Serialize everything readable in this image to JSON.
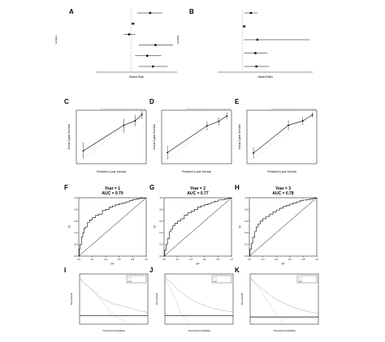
{
  "panel_labels": [
    "A",
    "B",
    "C",
    "D",
    "E",
    "F",
    "G",
    "H",
    "I",
    "J",
    "K"
  ],
  "chart_data": [
    {
      "panel": "A",
      "type": "forest",
      "xlabel": "Hazard Ratio",
      "ylabel": "Variable",
      "reference_value": 1,
      "rows": [
        {
          "hr": 1.55,
          "lo": 1.15,
          "hi": 2.05
        },
        {
          "hr": 1.05,
          "lo": 1.0,
          "hi": 1.1
        },
        {
          "hr": 0.96,
          "lo": 0.85,
          "hi": 1.1
        },
        {
          "hr": 1.75,
          "lo": 1.2,
          "hi": 2.6
        },
        {
          "hr": 1.45,
          "lo": 1.1,
          "hi": 2.0
        },
        {
          "hr": 1.65,
          "lo": 1.2,
          "hi": 2.3
        }
      ]
    },
    {
      "panel": "B",
      "type": "forest",
      "xlabel": "Hazard Ratio",
      "ylabel": "Variable",
      "reference_value": 1,
      "rows": [
        {
          "hr": 1.3,
          "lo": 1.05,
          "hi": 1.6
        },
        {
          "hr": 1.05,
          "lo": 1.0,
          "hi": 1.1
        },
        {
          "hr": 1.6,
          "lo": 1.05,
          "hi": 8.5
        },
        {
          "hr": 1.5,
          "lo": 1.05,
          "hi": 2.2
        },
        {
          "hr": 1.55,
          "lo": 1.05,
          "hi": 2.3
        }
      ]
    },
    {
      "panel": "C",
      "type": "line",
      "xlabel": "Predicted 1-year Survival",
      "ylabel": "Actual 1-year Survival",
      "xlim": [
        0.95,
        1.0
      ],
      "ylim": [
        0.95,
        1.0
      ],
      "points": [
        {
          "x": 0.955,
          "y": 0.962,
          "lo": 0.955,
          "hi": 0.97
        },
        {
          "x": 0.984,
          "y": 0.986,
          "lo": 0.979,
          "hi": 0.992
        },
        {
          "x": 0.992,
          "y": 0.99,
          "lo": 0.985,
          "hi": 0.996
        },
        {
          "x": 0.997,
          "y": 0.996,
          "lo": 0.992,
          "hi": 0.999
        }
      ]
    },
    {
      "panel": "D",
      "type": "line",
      "xlabel": "Predicted 2-year Survival",
      "ylabel": "Actual 2-year Survival",
      "xlim": [
        0.88,
        1.0
      ],
      "ylim": [
        0.88,
        1.0
      ],
      "points": [
        {
          "x": 0.89,
          "y": 0.905,
          "lo": 0.89,
          "hi": 0.92
        },
        {
          "x": 0.958,
          "y": 0.965,
          "lo": 0.955,
          "hi": 0.975
        },
        {
          "x": 0.978,
          "y": 0.975,
          "lo": 0.966,
          "hi": 0.984
        },
        {
          "x": 0.992,
          "y": 0.987,
          "lo": 0.98,
          "hi": 0.994
        }
      ]
    },
    {
      "panel": "E",
      "type": "line",
      "xlabel": "Predicted 3-year Survival",
      "ylabel": "Actual 3-year Survival",
      "xlim": [
        0.84,
        1.0
      ],
      "ylim": [
        0.84,
        1.0
      ],
      "points": [
        {
          "x": 0.855,
          "y": 0.872,
          "lo": 0.855,
          "hi": 0.89
        },
        {
          "x": 0.935,
          "y": 0.955,
          "lo": 0.94,
          "hi": 0.97
        },
        {
          "x": 0.968,
          "y": 0.968,
          "lo": 0.955,
          "hi": 0.98
        },
        {
          "x": 0.99,
          "y": 0.986,
          "lo": 0.978,
          "hi": 0.993
        }
      ]
    },
    {
      "panel": "F",
      "type": "line",
      "title": "Year = 1",
      "subtitle": "AUC = 0.79",
      "xlabel": "FP",
      "ylabel": "TP",
      "xlim": [
        0,
        1
      ],
      "ylim": [
        0,
        1
      ],
      "ticks": [
        0.0,
        0.2,
        0.4,
        0.6,
        0.8,
        1.0
      ],
      "x": [
        0,
        0.01,
        0.02,
        0.04,
        0.06,
        0.08,
        0.1,
        0.13,
        0.16,
        0.2,
        0.25,
        0.3,
        0.35,
        0.4,
        0.45,
        0.5,
        0.55,
        0.6,
        0.65,
        0.7,
        0.75,
        0.8,
        0.85,
        0.9,
        0.95,
        1
      ],
      "y": [
        0,
        0.12,
        0.2,
        0.33,
        0.4,
        0.48,
        0.5,
        0.58,
        0.62,
        0.66,
        0.7,
        0.72,
        0.78,
        0.8,
        0.84,
        0.86,
        0.88,
        0.9,
        0.91,
        0.93,
        0.95,
        0.97,
        0.98,
        0.99,
        0.995,
        1
      ]
    },
    {
      "panel": "G",
      "type": "line",
      "title": "Year = 2",
      "subtitle": "AUC = 0.77",
      "xlabel": "FP",
      "ylabel": "TP",
      "xlim": [
        0,
        1
      ],
      "ylim": [
        0,
        1
      ],
      "ticks": [
        0.0,
        0.2,
        0.4,
        0.6,
        0.8,
        1.0
      ],
      "x": [
        0,
        0.01,
        0.03,
        0.05,
        0.08,
        0.1,
        0.13,
        0.16,
        0.2,
        0.25,
        0.3,
        0.35,
        0.4,
        0.45,
        0.5,
        0.55,
        0.6,
        0.65,
        0.7,
        0.75,
        0.8,
        0.85,
        0.9,
        0.95,
        1
      ],
      "y": [
        0,
        0.1,
        0.2,
        0.3,
        0.42,
        0.46,
        0.52,
        0.56,
        0.6,
        0.64,
        0.7,
        0.74,
        0.77,
        0.8,
        0.84,
        0.86,
        0.88,
        0.9,
        0.92,
        0.94,
        0.96,
        0.97,
        0.98,
        0.99,
        1
      ]
    },
    {
      "panel": "H",
      "type": "line",
      "title": "Year = 3",
      "subtitle": "AUC = 0.78",
      "xlabel": "FP",
      "ylabel": "TP",
      "xlim": [
        0,
        1
      ],
      "ylim": [
        0,
        1
      ],
      "ticks": [
        0.0,
        0.2,
        0.4,
        0.6,
        0.8,
        1.0
      ],
      "x": [
        0,
        0.01,
        0.03,
        0.05,
        0.08,
        0.1,
        0.13,
        0.16,
        0.2,
        0.25,
        0.3,
        0.35,
        0.4,
        0.45,
        0.5,
        0.55,
        0.6,
        0.65,
        0.7,
        0.75,
        0.8,
        0.85,
        0.9,
        0.95,
        1
      ],
      "y": [
        0,
        0.12,
        0.22,
        0.32,
        0.42,
        0.5,
        0.55,
        0.6,
        0.64,
        0.68,
        0.72,
        0.76,
        0.79,
        0.82,
        0.85,
        0.87,
        0.89,
        0.91,
        0.93,
        0.95,
        0.96,
        0.97,
        0.98,
        0.99,
        1
      ]
    },
    {
      "panel": "I",
      "type": "line",
      "xlabel": "Threshold probability",
      "ylabel": "Net benefit",
      "xlim": [
        0,
        0.4
      ],
      "ylim": [
        -0.01,
        0.05
      ],
      "series": [
        {
          "name": "",
          "x": [
            0,
            0.02,
            0.04,
            0.06,
            0.08,
            0.1,
            0.12,
            0.15,
            0.2,
            0.25,
            0.3,
            0.35,
            0.4
          ],
          "y": [
            0.045,
            0.04,
            0.036,
            0.033,
            0.03,
            0.027,
            0.022,
            0.019,
            0.014,
            0.012,
            0.009,
            0.006,
            0.004
          ]
        },
        {
          "name": "",
          "x": [
            0,
            0.1,
            0.2,
            0.3
          ],
          "y": [
            0.045,
            0.025,
            0.0,
            -0.02
          ]
        },
        {
          "name": "",
          "x": [
            0,
            0.4
          ],
          "y": [
            0,
            0
          ]
        }
      ]
    },
    {
      "panel": "J",
      "type": "line",
      "xlabel": "Threshold probability",
      "ylabel": "Net benefit",
      "xlim": [
        0,
        0.4
      ],
      "ylim": [
        -0.02,
        0.1
      ],
      "series": [
        {
          "name": "",
          "x": [
            0,
            0.02,
            0.04,
            0.06,
            0.08,
            0.1,
            0.12,
            0.15,
            0.2,
            0.25,
            0.3,
            0.35,
            0.4
          ],
          "y": [
            0.092,
            0.085,
            0.078,
            0.07,
            0.062,
            0.055,
            0.048,
            0.04,
            0.03,
            0.022,
            0.016,
            0.012,
            0.009
          ]
        },
        {
          "name": "",
          "x": [
            0,
            0.05,
            0.1,
            0.15
          ],
          "y": [
            0.092,
            0.05,
            0.002,
            -0.04
          ]
        },
        {
          "name": "",
          "x": [
            0,
            0.4
          ],
          "y": [
            0,
            0
          ]
        }
      ]
    },
    {
      "panel": "K",
      "type": "line",
      "xlabel": "Threshold probability",
      "ylabel": "Net benefit",
      "xlim": [
        0,
        0.4
      ],
      "ylim": [
        -0.02,
        0.12
      ],
      "series": [
        {
          "name": "",
          "x": [
            0,
            0.02,
            0.04,
            0.06,
            0.08,
            0.1,
            0.12,
            0.15,
            0.2,
            0.25,
            0.3,
            0.35,
            0.4
          ],
          "y": [
            0.11,
            0.1,
            0.092,
            0.083,
            0.075,
            0.068,
            0.06,
            0.05,
            0.038,
            0.028,
            0.02,
            0.014,
            0.01
          ]
        },
        {
          "name": "",
          "x": [
            0,
            0.05,
            0.1,
            0.15,
            0.2
          ],
          "y": [
            0.11,
            0.08,
            0.045,
            0.01,
            -0.03
          ]
        },
        {
          "name": "",
          "x": [
            0,
            0.4
          ],
          "y": [
            0,
            0
          ]
        }
      ]
    }
  ]
}
